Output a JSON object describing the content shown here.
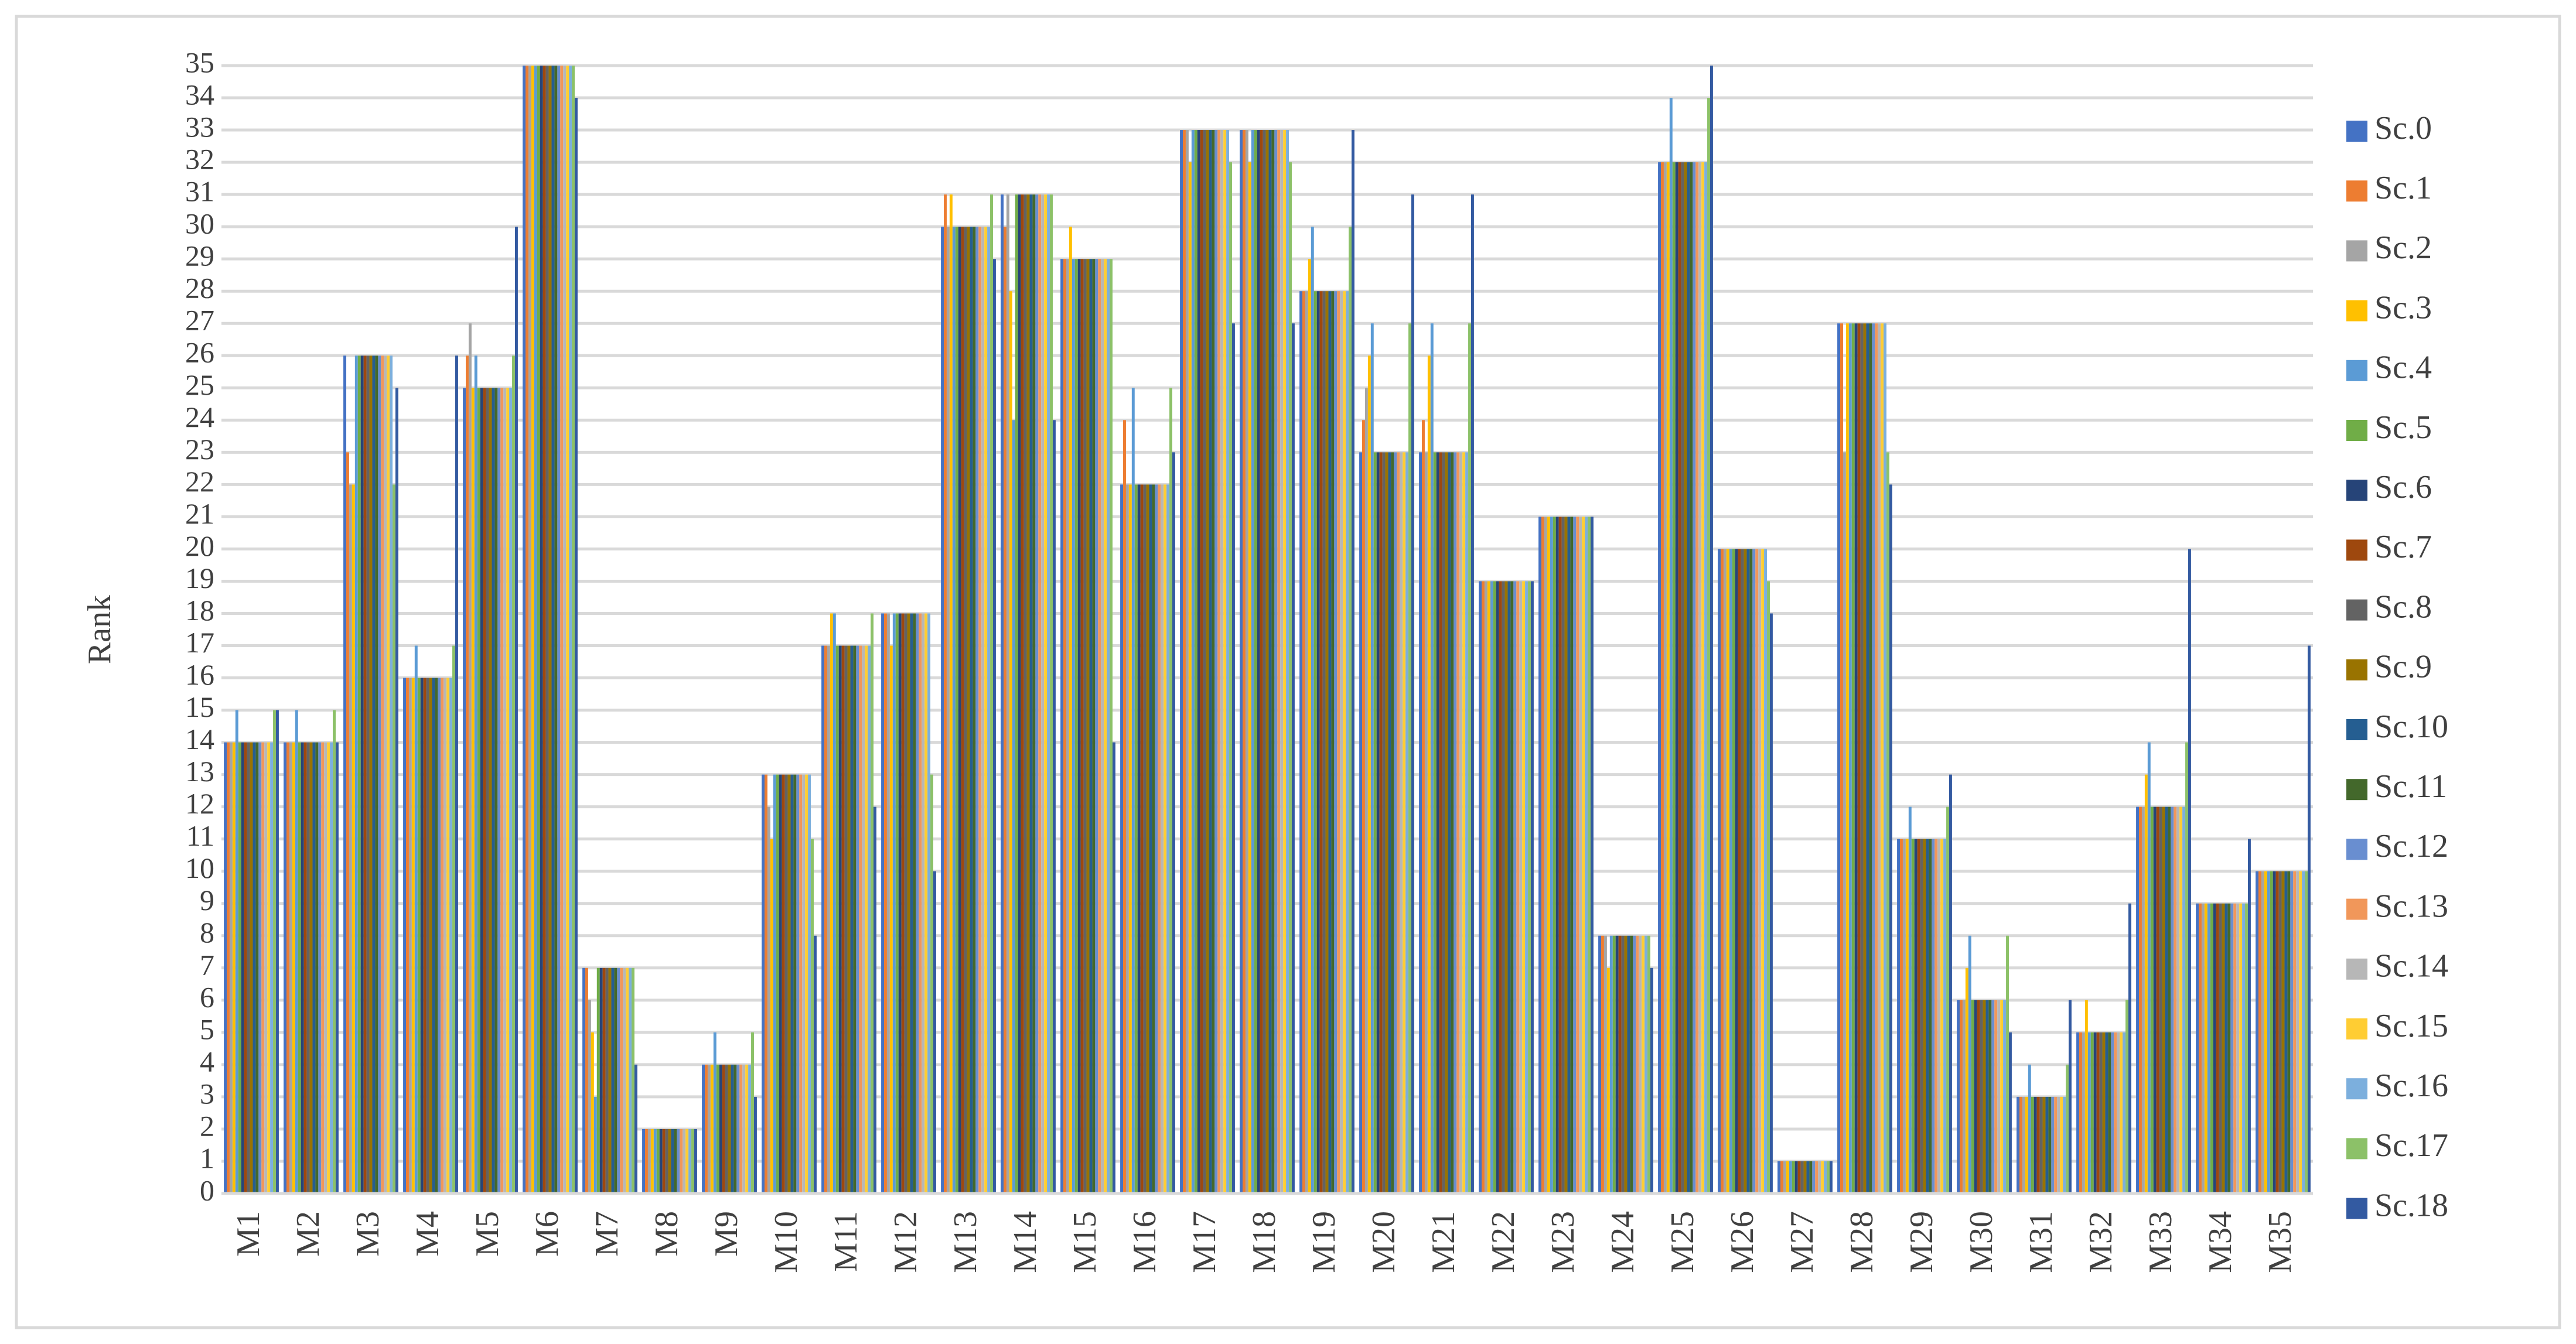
{
  "chart_data": {
    "type": "bar",
    "ylabel": "Rank",
    "categories": [
      "M1",
      "M2",
      "M3",
      "M4",
      "M5",
      "M6",
      "M7",
      "M8",
      "M9",
      "M10",
      "M11",
      "M12",
      "M13",
      "M14",
      "M15",
      "M16",
      "M17",
      "M18",
      "M19",
      "M20",
      "M21",
      "M22",
      "M23",
      "M24",
      "M25",
      "M26",
      "M27",
      "M28",
      "M29",
      "M30",
      "M31",
      "M32",
      "M33",
      "M34",
      "M35"
    ],
    "ylim": [
      0,
      35
    ],
    "yticks": [
      0,
      1,
      2,
      3,
      4,
      5,
      6,
      7,
      8,
      9,
      10,
      11,
      12,
      13,
      14,
      15,
      16,
      17,
      18,
      19,
      20,
      21,
      22,
      23,
      24,
      25,
      26,
      27,
      28,
      29,
      30,
      31,
      32,
      33,
      34,
      35
    ],
    "grid": true,
    "legend": "right",
    "series": [
      {
        "name": "Sc.0",
        "color": "#4472c4",
        "values": [
          14,
          14,
          26,
          16,
          25,
          35,
          7,
          2,
          4,
          13,
          17,
          18,
          30,
          31,
          29,
          22,
          33,
          33,
          28,
          23,
          23,
          19,
          21,
          8,
          32,
          20,
          1,
          27,
          11,
          6,
          3,
          5,
          12,
          9,
          10
        ]
      },
      {
        "name": "Sc.1",
        "color": "#ed7d31",
        "values": [
          14,
          14,
          23,
          16,
          26,
          35,
          7,
          2,
          4,
          13,
          17,
          18,
          31,
          30,
          29,
          24,
          33,
          33,
          28,
          24,
          24,
          19,
          21,
          8,
          32,
          20,
          1,
          27,
          11,
          6,
          3,
          5,
          12,
          9,
          10
        ]
      },
      {
        "name": "Sc.2",
        "color": "#a5a5a5",
        "values": [
          14,
          14,
          22,
          16,
          27,
          35,
          6,
          2,
          4,
          12,
          17,
          18,
          30,
          31,
          29,
          22,
          33,
          33,
          28,
          25,
          23,
          19,
          21,
          8,
          32,
          20,
          1,
          23,
          11,
          6,
          3,
          5,
          12,
          9,
          10
        ]
      },
      {
        "name": "Sc.3",
        "color": "#ffc000",
        "values": [
          14,
          14,
          22,
          16,
          25,
          35,
          5,
          2,
          4,
          11,
          18,
          17,
          31,
          28,
          30,
          22,
          32,
          32,
          29,
          26,
          26,
          19,
          21,
          7,
          32,
          20,
          1,
          27,
          11,
          7,
          3,
          6,
          13,
          9,
          10
        ]
      },
      {
        "name": "Sc.4",
        "color": "#5b9bd5",
        "values": [
          15,
          15,
          26,
          17,
          26,
          35,
          3,
          2,
          5,
          13,
          18,
          18,
          30,
          24,
          29,
          25,
          33,
          33,
          30,
          27,
          27,
          19,
          21,
          8,
          34,
          20,
          1,
          27,
          12,
          8,
          4,
          5,
          14,
          9,
          10
        ]
      },
      {
        "name": "Sc.5",
        "color": "#70ad47",
        "values": [
          14,
          14,
          26,
          16,
          25,
          35,
          7,
          2,
          4,
          13,
          17,
          18,
          30,
          31,
          29,
          22,
          33,
          33,
          28,
          23,
          23,
          19,
          21,
          8,
          32,
          20,
          1,
          27,
          11,
          6,
          3,
          5,
          12,
          9,
          10
        ]
      },
      {
        "name": "Sc.6",
        "color": "#264478",
        "values": [
          14,
          14,
          26,
          16,
          25,
          35,
          7,
          2,
          4,
          13,
          17,
          18,
          30,
          31,
          29,
          22,
          33,
          33,
          28,
          23,
          23,
          19,
          21,
          8,
          32,
          20,
          1,
          27,
          11,
          6,
          3,
          5,
          12,
          9,
          10
        ]
      },
      {
        "name": "Sc.7",
        "color": "#9e480e",
        "values": [
          14,
          14,
          26,
          16,
          25,
          35,
          7,
          2,
          4,
          13,
          17,
          18,
          30,
          31,
          29,
          22,
          33,
          33,
          28,
          23,
          23,
          19,
          21,
          8,
          32,
          20,
          1,
          27,
          11,
          6,
          3,
          5,
          12,
          9,
          10
        ]
      },
      {
        "name": "Sc.8",
        "color": "#636363",
        "values": [
          14,
          14,
          26,
          16,
          25,
          35,
          7,
          2,
          4,
          13,
          17,
          18,
          30,
          31,
          29,
          22,
          33,
          33,
          28,
          23,
          23,
          19,
          21,
          8,
          32,
          20,
          1,
          27,
          11,
          6,
          3,
          5,
          12,
          9,
          10
        ]
      },
      {
        "name": "Sc.9",
        "color": "#997300",
        "values": [
          14,
          14,
          26,
          16,
          25,
          35,
          7,
          2,
          4,
          13,
          17,
          18,
          30,
          31,
          29,
          22,
          33,
          33,
          28,
          23,
          23,
          19,
          21,
          8,
          32,
          20,
          1,
          27,
          11,
          6,
          3,
          5,
          12,
          9,
          10
        ]
      },
      {
        "name": "Sc.10",
        "color": "#255e91",
        "values": [
          14,
          14,
          26,
          16,
          25,
          35,
          7,
          2,
          4,
          13,
          17,
          18,
          30,
          31,
          29,
          22,
          33,
          33,
          28,
          23,
          23,
          19,
          21,
          8,
          32,
          20,
          1,
          27,
          11,
          6,
          3,
          5,
          12,
          9,
          10
        ]
      },
      {
        "name": "Sc.11",
        "color": "#43682b",
        "values": [
          14,
          14,
          26,
          16,
          25,
          35,
          7,
          2,
          4,
          13,
          17,
          18,
          30,
          31,
          29,
          22,
          33,
          33,
          28,
          23,
          23,
          19,
          21,
          8,
          32,
          20,
          1,
          27,
          11,
          6,
          3,
          5,
          12,
          9,
          10
        ]
      },
      {
        "name": "Sc.12",
        "color": "#698ed0",
        "values": [
          14,
          14,
          26,
          16,
          25,
          35,
          7,
          2,
          4,
          13,
          17,
          18,
          30,
          31,
          29,
          22,
          33,
          33,
          28,
          23,
          23,
          19,
          21,
          8,
          32,
          20,
          1,
          27,
          11,
          6,
          3,
          5,
          12,
          9,
          10
        ]
      },
      {
        "name": "Sc.13",
        "color": "#f1975a",
        "values": [
          14,
          14,
          26,
          16,
          25,
          35,
          7,
          2,
          4,
          13,
          17,
          18,
          30,
          31,
          29,
          22,
          33,
          33,
          28,
          23,
          23,
          19,
          21,
          8,
          32,
          20,
          1,
          27,
          11,
          6,
          3,
          5,
          12,
          9,
          10
        ]
      },
      {
        "name": "Sc.14",
        "color": "#b7b7b7",
        "values": [
          14,
          14,
          26,
          16,
          25,
          35,
          7,
          2,
          4,
          13,
          17,
          18,
          30,
          31,
          29,
          22,
          33,
          33,
          28,
          23,
          23,
          19,
          21,
          8,
          32,
          20,
          1,
          27,
          11,
          6,
          3,
          5,
          12,
          9,
          10
        ]
      },
      {
        "name": "Sc.15",
        "color": "#ffcd33",
        "values": [
          14,
          14,
          26,
          16,
          25,
          35,
          7,
          2,
          4,
          13,
          17,
          18,
          30,
          31,
          29,
          22,
          33,
          33,
          28,
          23,
          23,
          19,
          21,
          8,
          32,
          20,
          1,
          27,
          11,
          6,
          3,
          5,
          12,
          9,
          10
        ]
      },
      {
        "name": "Sc.16",
        "color": "#7cafdd",
        "values": [
          14,
          14,
          26,
          16,
          25,
          35,
          7,
          2,
          4,
          13,
          17,
          18,
          30,
          31,
          29,
          22,
          33,
          33,
          28,
          23,
          23,
          19,
          21,
          8,
          32,
          20,
          1,
          27,
          11,
          6,
          3,
          5,
          12,
          9,
          10
        ]
      },
      {
        "name": "Sc.17",
        "color": "#8cc168",
        "values": [
          15,
          15,
          22,
          17,
          26,
          35,
          7,
          2,
          5,
          11,
          18,
          13,
          31,
          31,
          29,
          25,
          32,
          32,
          30,
          27,
          27,
          19,
          21,
          8,
          34,
          19,
          1,
          23,
          12,
          8,
          4,
          6,
          14,
          9,
          10
        ]
      },
      {
        "name": "Sc.18",
        "color": "#335aa1",
        "values": [
          15,
          14,
          25,
          26,
          30,
          34,
          4,
          2,
          3,
          8,
          12,
          10,
          29,
          24,
          14,
          23,
          27,
          27,
          33,
          31,
          31,
          19,
          21,
          7,
          35,
          18,
          1,
          22,
          13,
          5,
          6,
          9,
          20,
          11,
          17
        ]
      }
    ]
  }
}
